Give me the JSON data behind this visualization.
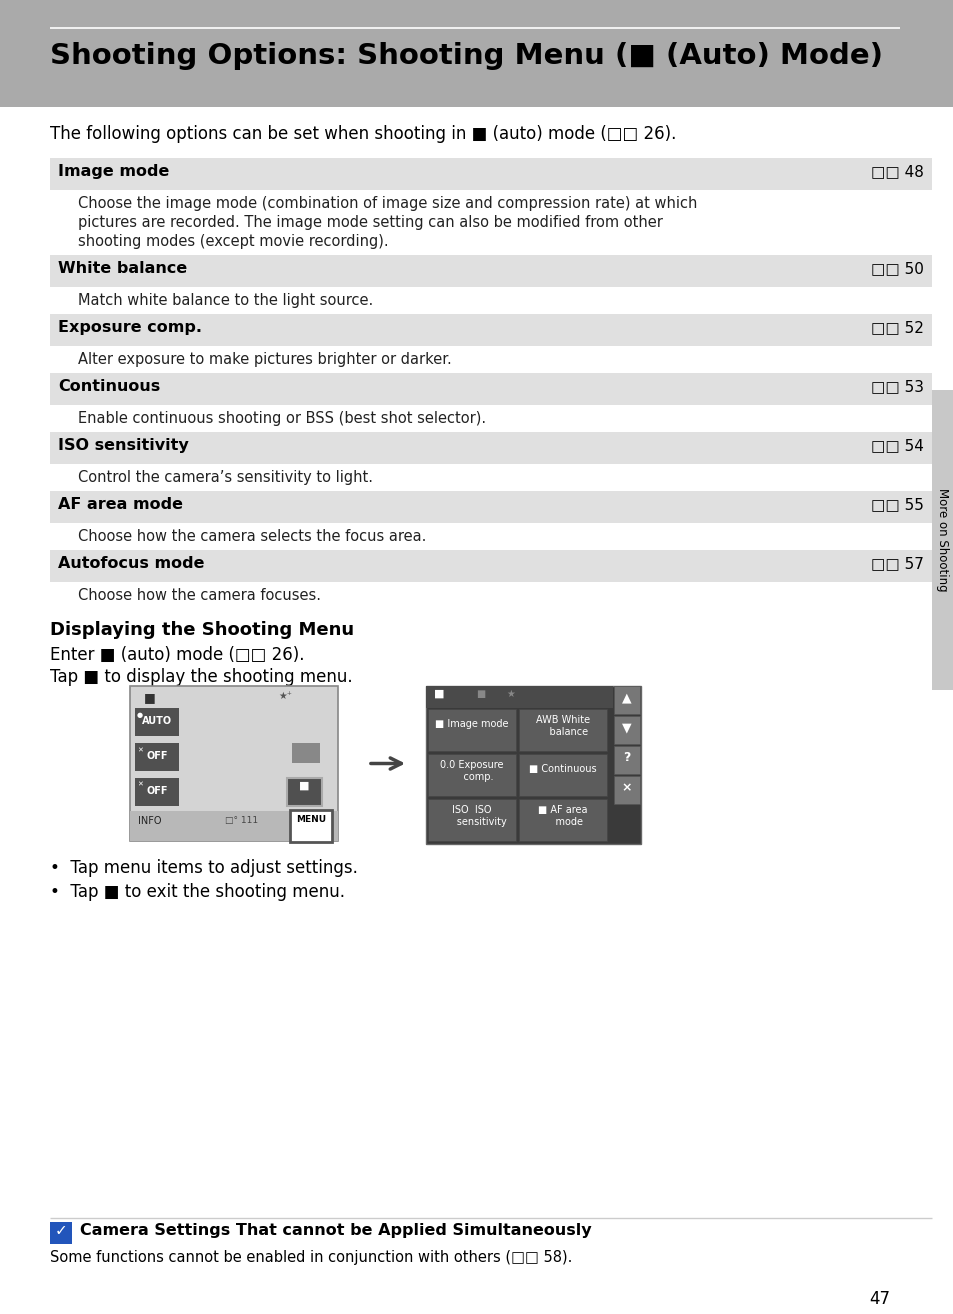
{
  "bg_color": "#ffffff",
  "header_bg": "#aaaaaa",
  "row_bg": "#e0e0e0",
  "sidebar_bg": "#c8c8c8",
  "page_number": "47",
  "title": "Shooting Options: Shooting Menu (■ (Auto) Mode)",
  "intro_text": "The following options can be set when shooting in ■ (auto) mode (□□ 26).",
  "rows": [
    {
      "title": "Image mode",
      "page_ref": "48",
      "description": "Choose the image mode (combination of image size and compression rate) at which\npictures are recorded. The image mode setting can also be modified from other\nshooting modes (except movie recording).",
      "desc_lines": 3
    },
    {
      "title": "White balance",
      "page_ref": "50",
      "description": "Match white balance to the light source.",
      "desc_lines": 1
    },
    {
      "title": "Exposure comp.",
      "page_ref": "52",
      "description": "Alter exposure to make pictures brighter or darker.",
      "desc_lines": 1
    },
    {
      "title": "Continuous",
      "page_ref": "53",
      "description": "Enable continuous shooting or BSS (best shot selector).",
      "desc_lines": 1
    },
    {
      "title": "ISO sensitivity",
      "page_ref": "54",
      "description": "Control the camera’s sensitivity to light.",
      "desc_lines": 1
    },
    {
      "title": "AF area mode",
      "page_ref": "55",
      "description": "Choose how the camera selects the focus area.",
      "desc_lines": 1
    },
    {
      "title": "Autofocus mode",
      "page_ref": "57",
      "description": "Choose how the camera focuses.",
      "desc_lines": 1
    }
  ],
  "section2_title": "Displaying the Shooting Menu",
  "section2_line1": "Enter ■ (auto) mode (□□ 26).",
  "section2_line2": "Tap ■ to display the shooting menu.",
  "bullet1": "Tap menu items to adjust settings.",
  "bullet2": "Tap ■ to exit the shooting menu.",
  "note_title": "Camera Settings That cannot be Applied Simultaneously",
  "note_text": "Some functions cannot be enabled in conjunction with others (□□ 58).",
  "sidebar_text": "More on Shooting",
  "left_screen_bg": "#d4d4d4",
  "right_screen_bg": "#3a3a3a",
  "btn_dark": "#505050",
  "btn_mid": "#686868"
}
